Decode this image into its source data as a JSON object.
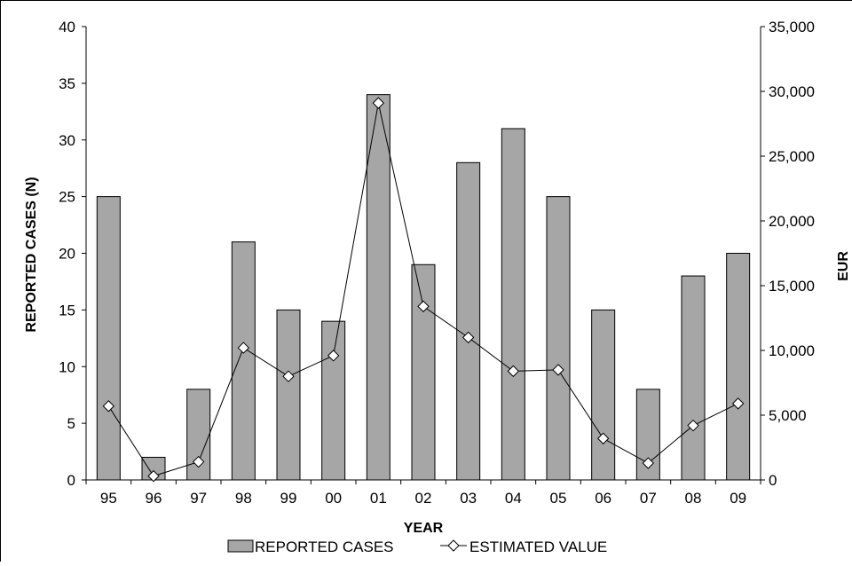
{
  "chart_data": {
    "type": "bar",
    "title": "",
    "xlabel": "YEAR",
    "ylabel": "REPORTED CASES (N)",
    "y2label": "EUR",
    "categories": [
      "95",
      "96",
      "97",
      "98",
      "99",
      "00",
      "01",
      "02",
      "03",
      "04",
      "05",
      "06",
      "07",
      "08",
      "09"
    ],
    "ylim": [
      0,
      40
    ],
    "yticks": [
      "0",
      "5",
      "10",
      "15",
      "20",
      "25",
      "30",
      "35",
      "40"
    ],
    "y2lim": [
      0,
      35000
    ],
    "y2ticks": [
      "0",
      "5,000",
      "10,000",
      "15,000",
      "20,000",
      "25,000",
      "30,000",
      "35,000"
    ],
    "grid": false,
    "legend_position": "bottom",
    "series": [
      {
        "name": "REPORTED CASES",
        "kind": "bar",
        "axis": "left",
        "color": "#a6a6a6",
        "values": [
          25,
          2,
          8,
          21,
          15,
          14,
          34,
          19,
          28,
          31,
          25,
          15,
          8,
          18,
          20
        ]
      },
      {
        "name": "ESTIMATED VALUE",
        "kind": "line",
        "axis": "right",
        "marker": "diamond",
        "color": "#000000",
        "values": [
          5700,
          300,
          1400,
          10200,
          8000,
          9600,
          29100,
          13400,
          11000,
          8400,
          8500,
          3200,
          1300,
          4200,
          5900
        ]
      }
    ]
  }
}
